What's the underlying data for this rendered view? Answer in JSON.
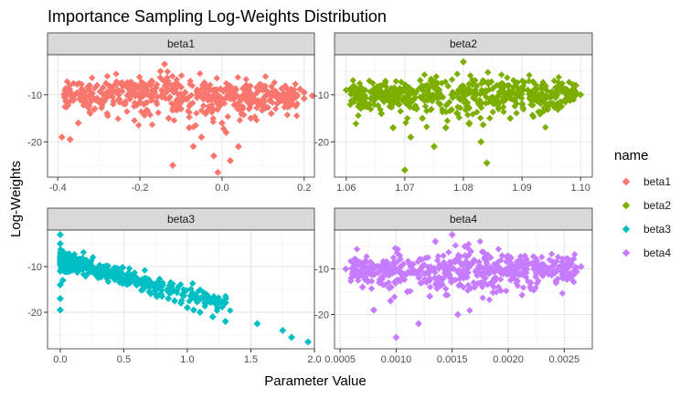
{
  "chart_data": {
    "type": "scatter",
    "title": "Importance Sampling Log-Weights Distribution",
    "xlabel": "Parameter Value",
    "ylabel": "Log-Weights",
    "grid": true,
    "legend": {
      "title": "name",
      "position": "right",
      "entries": [
        {
          "label": "beta1",
          "color": "#F8766D"
        },
        {
          "label": "beta2",
          "color": "#7CAE00"
        },
        {
          "label": "beta3",
          "color": "#00BFC4"
        },
        {
          "label": "beta4",
          "color": "#C77CFF"
        }
      ]
    },
    "panels": [
      {
        "name": "beta1",
        "color": "#F8766D",
        "xlim": [
          -0.425,
          0.225
        ],
        "ylim": [
          -27.5,
          -1.5
        ],
        "x_ticks": [
          -0.4,
          -0.2,
          0.0,
          0.2
        ],
        "x_tick_labels": [
          "-0.4",
          "-0.2",
          "0.0",
          "0.2"
        ],
        "y_ticks": [
          -10,
          -20
        ],
        "y_tick_labels": [
          "-10",
          "-20"
        ],
        "points": [
          [
            -0.39,
            -19
          ],
          [
            -0.37,
            -19.5
          ],
          [
            -0.35,
            -16
          ],
          [
            -0.33,
            -12
          ],
          [
            -0.32,
            -10
          ],
          [
            -0.31,
            -13
          ],
          [
            -0.3,
            -11.5
          ],
          [
            -0.29,
            -8.5
          ],
          [
            -0.28,
            -14
          ],
          [
            -0.27,
            -9.5
          ],
          [
            -0.25,
            -11
          ],
          [
            -0.23,
            -10.2
          ],
          [
            -0.21,
            -8
          ],
          [
            -0.19,
            -12
          ],
          [
            -0.17,
            -9
          ],
          [
            -0.15,
            -5
          ],
          [
            -0.14,
            -3.5
          ],
          [
            -0.13,
            -15
          ],
          [
            -0.12,
            -25
          ],
          [
            -0.11,
            -11.5
          ],
          [
            -0.1,
            -13
          ],
          [
            -0.09,
            -9.5
          ],
          [
            -0.08,
            -17
          ],
          [
            -0.07,
            -21
          ],
          [
            -0.06,
            -10
          ],
          [
            -0.05,
            -19
          ],
          [
            -0.04,
            -14
          ],
          [
            -0.03,
            -9
          ],
          [
            -0.02,
            -23
          ],
          [
            -0.01,
            -26.5
          ],
          [
            0.0,
            -11
          ],
          [
            0.0,
            -16
          ],
          [
            0.01,
            -18
          ],
          [
            0.02,
            -24
          ],
          [
            0.03,
            -10.5
          ],
          [
            0.04,
            -21
          ],
          [
            0.05,
            -13
          ],
          [
            0.06,
            -8
          ],
          [
            0.07,
            -15
          ],
          [
            0.08,
            -11
          ],
          [
            0.09,
            -9
          ],
          [
            0.1,
            -12.5
          ],
          [
            0.11,
            -10
          ],
          [
            0.12,
            -14
          ],
          [
            0.13,
            -9.5
          ],
          [
            0.14,
            -11
          ],
          [
            0.15,
            -10
          ],
          [
            0.16,
            -12
          ],
          [
            0.17,
            -9
          ],
          [
            0.18,
            -10.5
          ],
          [
            0.19,
            -8.8
          ],
          [
            0.2,
            -9.5
          ],
          [
            0.2,
            -10.8
          ],
          [
            0.22,
            -10.2
          ]
        ]
      },
      {
        "name": "beta2",
        "color": "#7CAE00",
        "xlim": [
          1.058,
          1.102
        ],
        "ylim": [
          -27.5,
          -1.5
        ],
        "x_ticks": [
          1.06,
          1.07,
          1.08,
          1.09,
          1.1
        ],
        "x_tick_labels": [
          "1.06",
          "1.07",
          "1.08",
          "1.09",
          "1.10"
        ],
        "y_ticks": [
          -10,
          -20
        ],
        "y_tick_labels": [
          "-10",
          "-20"
        ],
        "points": [
          [
            1.06,
            -9
          ],
          [
            1.062,
            -10
          ],
          [
            1.064,
            -12
          ],
          [
            1.065,
            -9.5
          ],
          [
            1.066,
            -14
          ],
          [
            1.067,
            -11
          ],
          [
            1.068,
            -17
          ],
          [
            1.069,
            -10
          ],
          [
            1.07,
            -26
          ],
          [
            1.071,
            -19
          ],
          [
            1.072,
            -13
          ],
          [
            1.073,
            -15
          ],
          [
            1.074,
            -11
          ],
          [
            1.075,
            -21
          ],
          [
            1.076,
            -12
          ],
          [
            1.077,
            -17
          ],
          [
            1.078,
            -10
          ],
          [
            1.079,
            -14
          ],
          [
            1.08,
            -3
          ],
          [
            1.081,
            -16
          ],
          [
            1.082,
            -9
          ],
          [
            1.083,
            -20
          ],
          [
            1.084,
            -24.5
          ],
          [
            1.085,
            -11
          ],
          [
            1.086,
            -13
          ],
          [
            1.087,
            -9.5
          ],
          [
            1.088,
            -15
          ],
          [
            1.089,
            -10
          ],
          [
            1.09,
            -12
          ],
          [
            1.091,
            -9
          ],
          [
            1.092,
            -11
          ],
          [
            1.093,
            -10
          ],
          [
            1.094,
            -12.5
          ],
          [
            1.095,
            -9.5
          ],
          [
            1.096,
            -10
          ],
          [
            1.097,
            -9
          ],
          [
            1.098,
            -11
          ],
          [
            1.099,
            -8
          ],
          [
            1.1,
            -10
          ]
        ]
      },
      {
        "name": "beta3",
        "color": "#00BFC4",
        "xlim": [
          -0.1,
          2.0
        ],
        "ylim": [
          -28,
          -2
        ],
        "x_ticks": [
          0.0,
          0.5,
          1.0,
          1.5,
          2.0
        ],
        "x_tick_labels": [
          "0.0",
          "0.5",
          "1.0",
          "1.5",
          "2.0"
        ],
        "y_ticks": [
          -10,
          -20
        ],
        "y_tick_labels": [
          "-10",
          "-20"
        ],
        "points": [
          [
            0.0,
            -3
          ],
          [
            0.0,
            -5
          ],
          [
            0.0,
            -8
          ],
          [
            0.0,
            -11
          ],
          [
            0.0,
            -14
          ],
          [
            0.0,
            -17
          ],
          [
            0.0,
            -19.5
          ],
          [
            0.01,
            -9
          ],
          [
            0.02,
            -13
          ],
          [
            0.03,
            -10
          ],
          [
            0.05,
            -8
          ],
          [
            0.08,
            -10
          ],
          [
            0.1,
            -9
          ],
          [
            0.15,
            -8.5
          ],
          [
            0.2,
            -9.5
          ],
          [
            0.25,
            -10
          ],
          [
            0.3,
            -10.5
          ],
          [
            0.35,
            -11
          ],
          [
            0.4,
            -12
          ],
          [
            0.45,
            -12.5
          ],
          [
            0.5,
            -13
          ],
          [
            0.55,
            -13.5
          ],
          [
            0.6,
            -14
          ],
          [
            0.65,
            -15
          ],
          [
            0.7,
            -15.5
          ],
          [
            0.75,
            -16
          ],
          [
            0.8,
            -16.5
          ],
          [
            0.85,
            -17
          ],
          [
            0.9,
            -17.5
          ],
          [
            0.95,
            -18
          ],
          [
            1.0,
            -19
          ],
          [
            1.05,
            -19.5
          ],
          [
            1.1,
            -20
          ],
          [
            1.2,
            -21
          ],
          [
            1.3,
            -22
          ],
          [
            1.55,
            -22.5
          ],
          [
            1.75,
            -24
          ],
          [
            1.82,
            -25.5
          ],
          [
            1.95,
            -26.5
          ]
        ]
      },
      {
        "name": "beta4",
        "color": "#C77CFF",
        "xlim": [
          0.00045,
          0.00275
        ],
        "ylim": [
          -27.5,
          -1.5
        ],
        "x_ticks": [
          0.0005,
          0.001,
          0.0015,
          0.002,
          0.0025
        ],
        "x_tick_labels": [
          "0.0005",
          "0.0010",
          "0.0015",
          "0.0020",
          "0.0025"
        ],
        "y_ticks": [
          -10,
          -20
        ],
        "y_tick_labels": [
          "-10",
          "-20"
        ],
        "points": [
          [
            0.00055,
            -10
          ],
          [
            0.0006,
            -12
          ],
          [
            0.00065,
            -9
          ],
          [
            0.0007,
            -14
          ],
          [
            0.00075,
            -11
          ],
          [
            0.0008,
            -19
          ],
          [
            0.00085,
            -13
          ],
          [
            0.0009,
            -10
          ],
          [
            0.00095,
            -17
          ],
          [
            0.001,
            -25
          ],
          [
            0.00105,
            -12
          ],
          [
            0.0011,
            -15
          ],
          [
            0.00115,
            -9
          ],
          [
            0.0012,
            -22
          ],
          [
            0.00125,
            -11
          ],
          [
            0.0013,
            -16
          ],
          [
            0.00135,
            -4
          ],
          [
            0.0014,
            -13
          ],
          [
            0.00145,
            -10
          ],
          [
            0.0015,
            -2.5
          ],
          [
            0.00155,
            -20
          ],
          [
            0.0016,
            -12
          ],
          [
            0.00165,
            -9
          ],
          [
            0.0017,
            -14
          ],
          [
            0.00175,
            -11
          ],
          [
            0.0018,
            -10
          ],
          [
            0.00185,
            -13
          ],
          [
            0.0019,
            -9.5
          ],
          [
            0.00195,
            -11
          ],
          [
            0.002,
            -10
          ],
          [
            0.00205,
            -12
          ],
          [
            0.0021,
            -9
          ],
          [
            0.00215,
            -10.5
          ],
          [
            0.0022,
            -13
          ],
          [
            0.00225,
            -11
          ],
          [
            0.0023,
            -9
          ],
          [
            0.0024,
            -8.5
          ],
          [
            0.0025,
            -10
          ],
          [
            0.00265,
            -9.5
          ]
        ]
      }
    ]
  }
}
